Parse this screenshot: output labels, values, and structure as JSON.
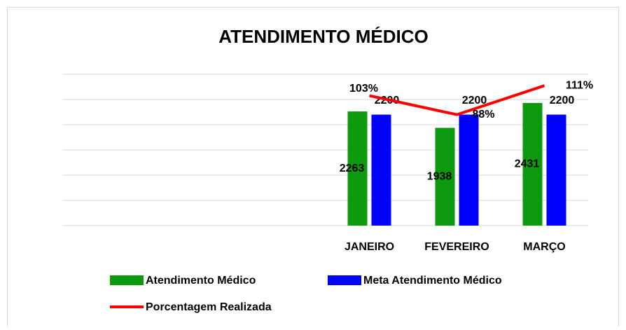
{
  "chart_data": {
    "type": "bar-line",
    "title": "ATENDIMENTO MÉDICO",
    "categories": [
      null,
      null,
      null,
      "JANEIRO",
      "FEVEREIRO",
      "MARÇO"
    ],
    "series": [
      {
        "name": "Atendimento Médico",
        "color": "#0e9a0e",
        "type": "bar",
        "values": [
          null,
          null,
          null,
          2263,
          1938,
          2431
        ]
      },
      {
        "name": "Meta Atendimento Médico",
        "color": "#0000ff",
        "type": "bar",
        "values": [
          null,
          null,
          null,
          2200,
          2200,
          2200
        ]
      },
      {
        "name": "Porcentagem Realizada",
        "color": "#ff0000",
        "type": "line",
        "axis": "y2",
        "values": [
          null,
          null,
          null,
          103,
          88,
          111
        ],
        "value_labels": [
          null,
          null,
          null,
          "103%",
          "88%",
          "111%"
        ]
      }
    ],
    "ylim": [
      0,
      3000
    ],
    "yticks": [
      0,
      500,
      1000,
      1500,
      2000,
      2500,
      3000
    ],
    "y2lim": [
      0,
      120
    ],
    "grid": true,
    "legend": "bottom"
  }
}
